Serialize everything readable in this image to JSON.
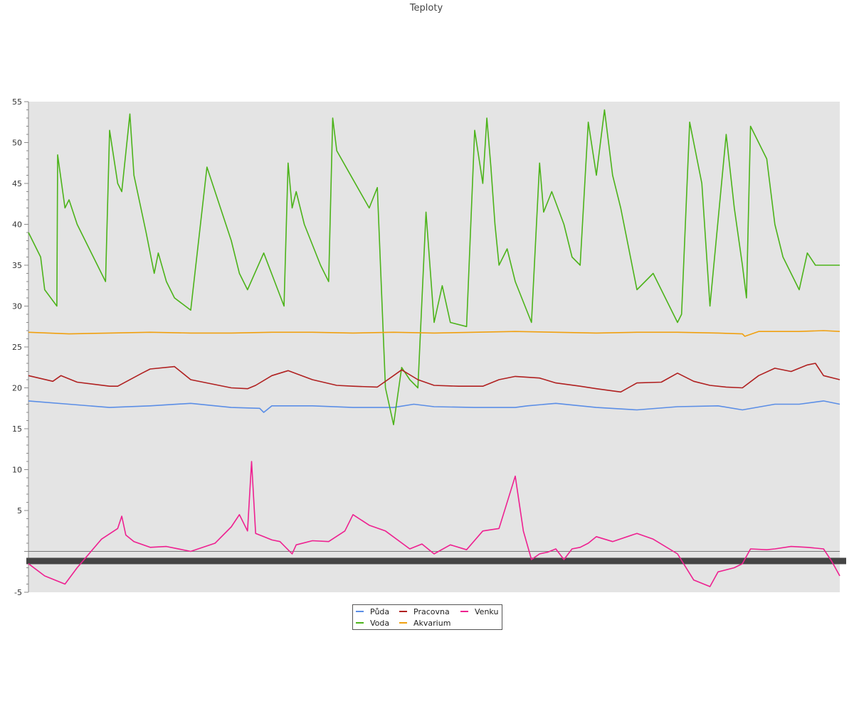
{
  "chart_data": {
    "type": "line",
    "title": "Teploty",
    "xlabel": "",
    "ylabel": "",
    "ylim": [
      -5,
      55
    ],
    "y_ticks": [
      -5,
      5,
      10,
      15,
      20,
      25,
      30,
      35,
      40,
      45,
      50,
      55
    ],
    "x_range": [
      0,
      100
    ],
    "grid": false,
    "legend_position": "bottom-center",
    "series": [
      {
        "name": "Půda",
        "color": "#5b8ee6",
        "x": [
          0,
          5,
          10,
          15,
          20,
          25,
          28.5,
          29,
          30,
          35,
          40,
          45,
          47.5,
          50,
          55,
          60,
          61.5,
          65,
          70,
          75,
          80,
          85,
          88,
          92,
          95,
          98,
          100
        ],
        "y": [
          18.4,
          18.0,
          17.6,
          17.8,
          18.1,
          17.6,
          17.5,
          17.0,
          17.8,
          17.8,
          17.6,
          17.6,
          18.0,
          17.7,
          17.6,
          17.6,
          17.8,
          18.1,
          17.6,
          17.3,
          17.7,
          17.8,
          17.3,
          18.0,
          18.0,
          18.4,
          18.0
        ]
      },
      {
        "name": "Voda",
        "color": "#4cb31a",
        "x": [
          0,
          1.5,
          2,
          3.5,
          3.6,
          4.5,
          5,
          6,
          8.5,
          9.5,
          10,
          11,
          11.5,
          12.5,
          13,
          14.5,
          15.5,
          16,
          17,
          18,
          20,
          22,
          24,
          25,
          26,
          27,
          29,
          31.5,
          32,
          32.5,
          33,
          34,
          36,
          37,
          37.5,
          38,
          40,
          42,
          43,
          44,
          45,
          46,
          47,
          48,
          49,
          50,
          51,
          52,
          54,
          55,
          56,
          56.5,
          57,
          57.5,
          58,
          59,
          60,
          62,
          63,
          63.5,
          64.5,
          66,
          67,
          68,
          69,
          70,
          71,
          72,
          73,
          75,
          77,
          80,
          80.5,
          81.5,
          82,
          83,
          84,
          86,
          87,
          88,
          88.5,
          89,
          91,
          92,
          93,
          95,
          96,
          97,
          97.5,
          98,
          99,
          100
        ],
        "y": [
          39,
          36,
          32,
          30,
          48.5,
          42,
          43,
          40,
          35,
          33,
          51.5,
          45,
          44,
          53.5,
          46,
          39,
          34,
          36.5,
          33,
          31,
          29.5,
          47,
          41,
          38,
          34,
          32,
          36.5,
          30,
          47.5,
          42,
          44,
          40,
          35,
          33,
          53,
          49,
          45.5,
          42,
          44.5,
          20,
          15.5,
          22.5,
          21,
          20,
          41.5,
          28,
          32.5,
          28,
          27.5,
          51.5,
          45,
          53,
          47,
          40,
          35,
          37,
          33,
          28,
          47.5,
          41.5,
          44,
          40,
          36,
          35,
          52.5,
          46,
          54,
          46,
          42,
          32,
          34,
          28,
          29,
          52.5,
          50,
          45,
          30,
          51,
          42,
          35,
          31,
          52,
          48,
          40,
          36,
          32,
          36.5,
          35,
          35,
          35,
          35,
          35
        ]
      },
      {
        "name": "Pracovna",
        "color": "#b02020",
        "x": [
          0,
          3,
          4,
          6,
          10,
          11,
          14,
          15,
          18,
          20,
          25,
          27,
          28,
          30,
          32,
          35,
          38,
          40,
          43,
          45,
          46,
          48,
          50,
          53,
          56,
          58,
          60,
          63,
          65,
          68,
          70,
          73,
          75,
          78,
          80,
          82,
          84,
          86,
          88,
          90,
          92,
          94,
          96,
          97,
          98,
          100
        ],
        "y": [
          21.5,
          20.8,
          21.5,
          20.7,
          20.2,
          20.2,
          21.8,
          22.3,
          22.6,
          21,
          20,
          19.9,
          20.3,
          21.5,
          22.1,
          21,
          20.3,
          20.2,
          20.1,
          21.5,
          22.2,
          21,
          20.3,
          20.2,
          20.2,
          21,
          21.4,
          21.2,
          20.6,
          20.2,
          19.9,
          19.5,
          20.6,
          20.7,
          21.8,
          20.8,
          20.3,
          20.1,
          20.0,
          21.5,
          22.4,
          22.0,
          22.8,
          23.0,
          21.5,
          21.0
        ]
      },
      {
        "name": "Akvarium",
        "color": "#f0a010",
        "x": [
          0,
          5,
          10,
          15,
          20,
          25,
          30,
          35,
          40,
          45,
          50,
          55,
          60,
          65,
          70,
          75,
          80,
          85,
          88,
          88.3,
          90,
          95,
          98,
          100
        ],
        "y": [
          26.8,
          26.6,
          26.7,
          26.8,
          26.7,
          26.7,
          26.8,
          26.8,
          26.7,
          26.8,
          26.7,
          26.8,
          26.9,
          26.8,
          26.7,
          26.8,
          26.8,
          26.7,
          26.6,
          26.3,
          26.9,
          26.9,
          27.0,
          26.9
        ]
      },
      {
        "name": "Venku",
        "color": "#ee2090",
        "x": [
          0,
          2,
          4.5,
          6,
          9,
          11,
          11.5,
          12,
          13,
          15,
          17,
          20,
          23,
          25,
          26,
          27,
          27.5,
          28,
          29,
          30,
          31,
          32.5,
          33,
          35,
          37,
          39,
          40,
          42,
          44,
          47,
          48.5,
          50,
          52,
          54,
          56,
          58,
          60,
          61,
          62,
          63,
          64,
          65,
          66,
          67,
          68,
          69,
          70,
          72,
          75,
          77,
          80,
          82,
          84,
          85,
          87,
          88,
          89,
          91,
          92,
          94,
          96,
          98,
          99,
          100
        ],
        "y": [
          -1.5,
          -3,
          -4,
          -2,
          1.5,
          2.8,
          4.3,
          2,
          1.2,
          0.5,
          0.6,
          0,
          1,
          3,
          4.5,
          2.5,
          11,
          2.2,
          1.8,
          1.4,
          1.2,
          -0.3,
          0.8,
          1.3,
          1.2,
          2.5,
          4.5,
          3.2,
          2.5,
          0.3,
          0.9,
          -0.3,
          0.8,
          0.2,
          2.5,
          2.8,
          9.2,
          2.5,
          -1,
          -0.3,
          -0.1,
          0.3,
          -1,
          0.3,
          0.5,
          1.0,
          1.8,
          1.2,
          2.2,
          1.5,
          -0.3,
          -3.5,
          -4.3,
          -2.5,
          -2.0,
          -1.5,
          0.3,
          0.2,
          0.3,
          0.6,
          0.5,
          0.3,
          -1.2,
          -3
        ]
      }
    ]
  }
}
